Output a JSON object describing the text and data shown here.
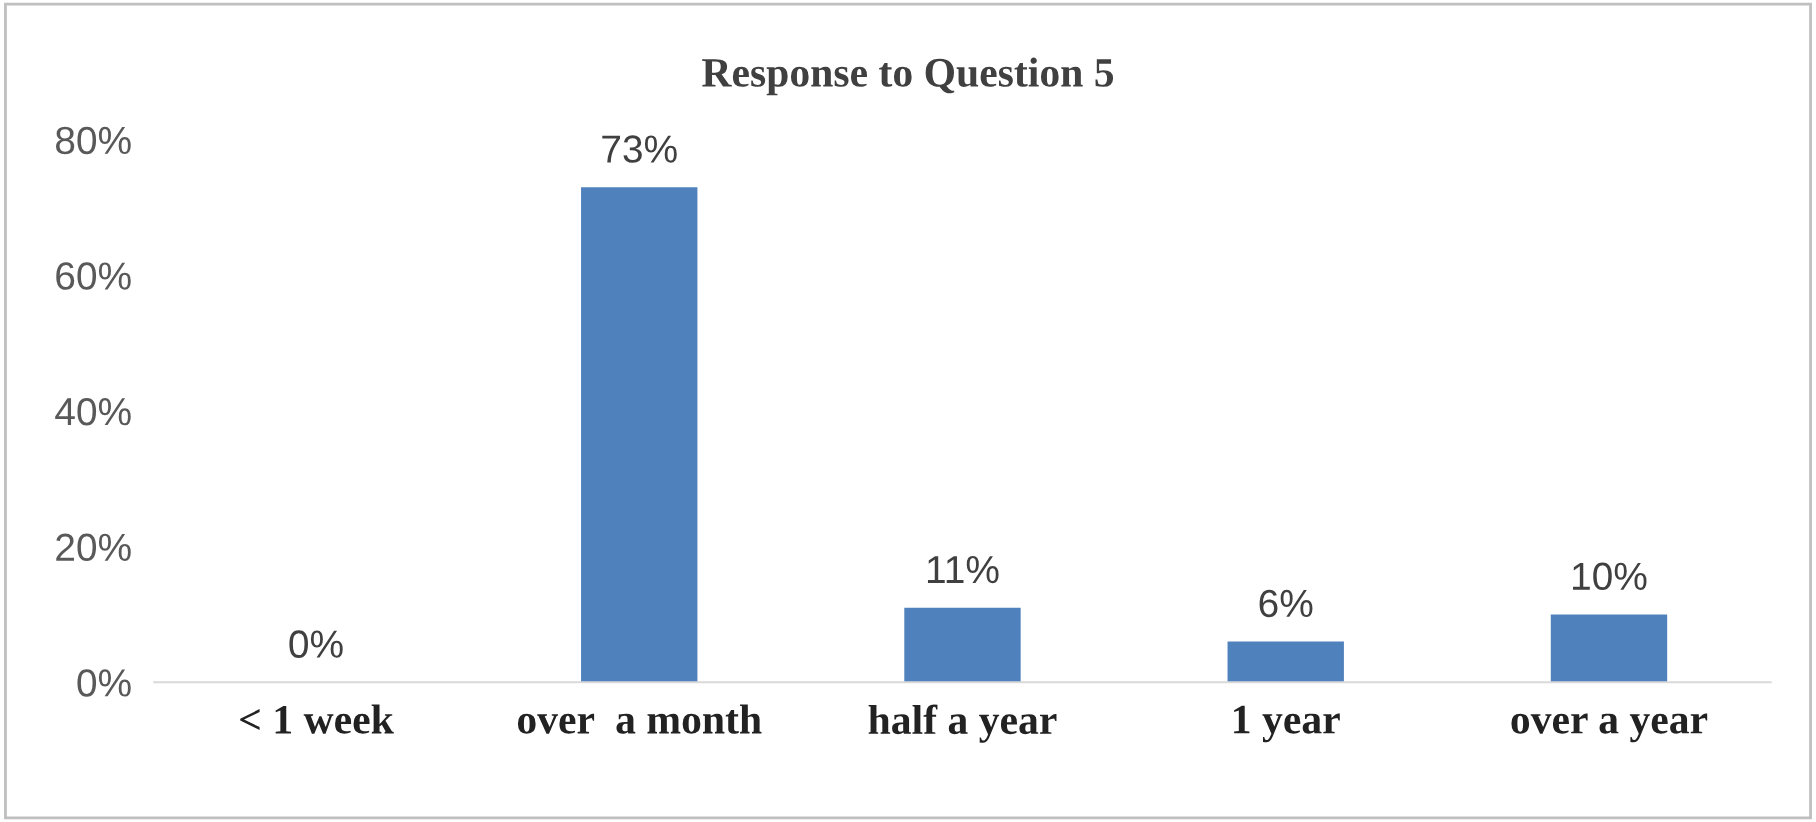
{
  "chart_data": {
    "type": "bar",
    "title": "Response to Question 5",
    "categories": [
      "< 1 week",
      "over  a month",
      "half a year",
      "1 year",
      "over a year"
    ],
    "values": [
      0,
      73,
      11,
      6,
      10
    ],
    "value_labels": [
      "0%",
      "73%",
      "11%",
      "6%",
      "10%"
    ],
    "color": "#4f81bd",
    "ylim": [
      0,
      80
    ],
    "yticks": [
      {
        "value": 0,
        "label": "0%"
      },
      {
        "value": 20,
        "label": "20%"
      },
      {
        "value": 40,
        "label": "40%"
      },
      {
        "value": 60,
        "label": "60%"
      },
      {
        "value": 80,
        "label": "80%"
      }
    ],
    "grid": false
  }
}
